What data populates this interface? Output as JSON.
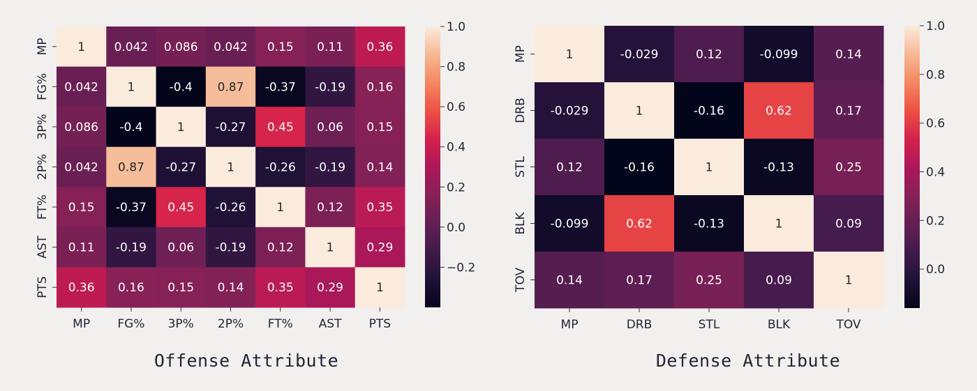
{
  "chart_data": [
    {
      "type": "heatmap",
      "title": "Offense Attribute",
      "x_labels": [
        "MP",
        "FG%",
        "3P%",
        "2P%",
        "FT%",
        "AST",
        "PTS"
      ],
      "y_labels": [
        "MP",
        "FG%",
        "3P%",
        "2P%",
        "FT%",
        "AST",
        "PTS"
      ],
      "values": [
        [
          1,
          0.042,
          0.086,
          0.042,
          0.15,
          0.11,
          0.36
        ],
        [
          0.042,
          1,
          -0.4,
          0.87,
          -0.37,
          -0.19,
          0.16
        ],
        [
          0.086,
          -0.4,
          1,
          -0.27,
          0.45,
          0.06,
          0.15
        ],
        [
          0.042,
          0.87,
          -0.27,
          1,
          -0.26,
          -0.19,
          0.14
        ],
        [
          0.15,
          -0.37,
          0.45,
          -0.26,
          1,
          0.12,
          0.35
        ],
        [
          0.11,
          -0.19,
          0.06,
          -0.19,
          0.12,
          1,
          0.29
        ],
        [
          0.36,
          0.16,
          0.15,
          0.14,
          0.35,
          0.29,
          1
        ]
      ],
      "cell_labels": [
        [
          "1",
          "0.042",
          "0.086",
          "0.042",
          "0.15",
          "0.11",
          "0.36"
        ],
        [
          "0.042",
          "1",
          "-0.4",
          "0.87",
          "-0.37",
          "-0.19",
          "0.16"
        ],
        [
          "0.086",
          "-0.4",
          "1",
          "-0.27",
          "0.45",
          "0.06",
          "0.15"
        ],
        [
          "0.042",
          "0.87",
          "-0.27",
          "1",
          "-0.26",
          "-0.19",
          "0.14"
        ],
        [
          "0.15",
          "-0.37",
          "0.45",
          "-0.26",
          "1",
          "0.12",
          "0.35"
        ],
        [
          "0.11",
          "-0.19",
          "0.06",
          "-0.19",
          "0.12",
          "1",
          "0.29"
        ],
        [
          "0.36",
          "0.16",
          "0.15",
          "0.14",
          "0.35",
          "0.29",
          "1"
        ]
      ],
      "colorbar": {
        "vmin": -0.4,
        "vmax": 1,
        "ticks": [
          1.0,
          0.8,
          0.6,
          0.4,
          0.2,
          0.0,
          -0.2
        ],
        "tick_labels": [
          "1.0",
          "0.8",
          "0.6",
          "0.4",
          "0.2",
          "0.0",
          "−0.2"
        ],
        "colormap": "rocket"
      }
    },
    {
      "type": "heatmap",
      "title": "Defense Attribute",
      "x_labels": [
        "MP",
        "DRB",
        "STL",
        "BLK",
        "TOV"
      ],
      "y_labels": [
        "MP",
        "DRB",
        "STL",
        "BLK",
        "TOV"
      ],
      "values": [
        [
          1,
          -0.029,
          0.12,
          -0.099,
          0.14
        ],
        [
          -0.029,
          1,
          -0.16,
          0.62,
          0.17
        ],
        [
          0.12,
          -0.16,
          1,
          -0.13,
          0.25
        ],
        [
          -0.099,
          0.62,
          -0.13,
          1,
          0.09
        ],
        [
          0.14,
          0.17,
          0.25,
          0.09,
          1
        ]
      ],
      "cell_labels": [
        [
          "1",
          "-0.029",
          "0.12",
          "-0.099",
          "0.14"
        ],
        [
          "-0.029",
          "1",
          "-0.16",
          "0.62",
          "0.17"
        ],
        [
          "0.12",
          "-0.16",
          "1",
          "-0.13",
          "0.25"
        ],
        [
          "-0.099",
          "0.62",
          "-0.13",
          "1",
          "0.09"
        ],
        [
          "0.14",
          "0.17",
          "0.25",
          "0.09",
          "1"
        ]
      ],
      "colorbar": {
        "vmin": -0.16,
        "vmax": 1,
        "ticks": [
          1.0,
          0.8,
          0.6,
          0.4,
          0.2,
          0.0
        ],
        "tick_labels": [
          "1.0",
          "0.8",
          "0.6",
          "0.4",
          "0.2",
          "0.0"
        ],
        "colormap": "rocket"
      }
    }
  ],
  "colors": {
    "background": "#f2f0ef",
    "text_dark": "#2a2133",
    "cell_text_light": "#ffffff",
    "cell_text_dark": "#262626"
  }
}
